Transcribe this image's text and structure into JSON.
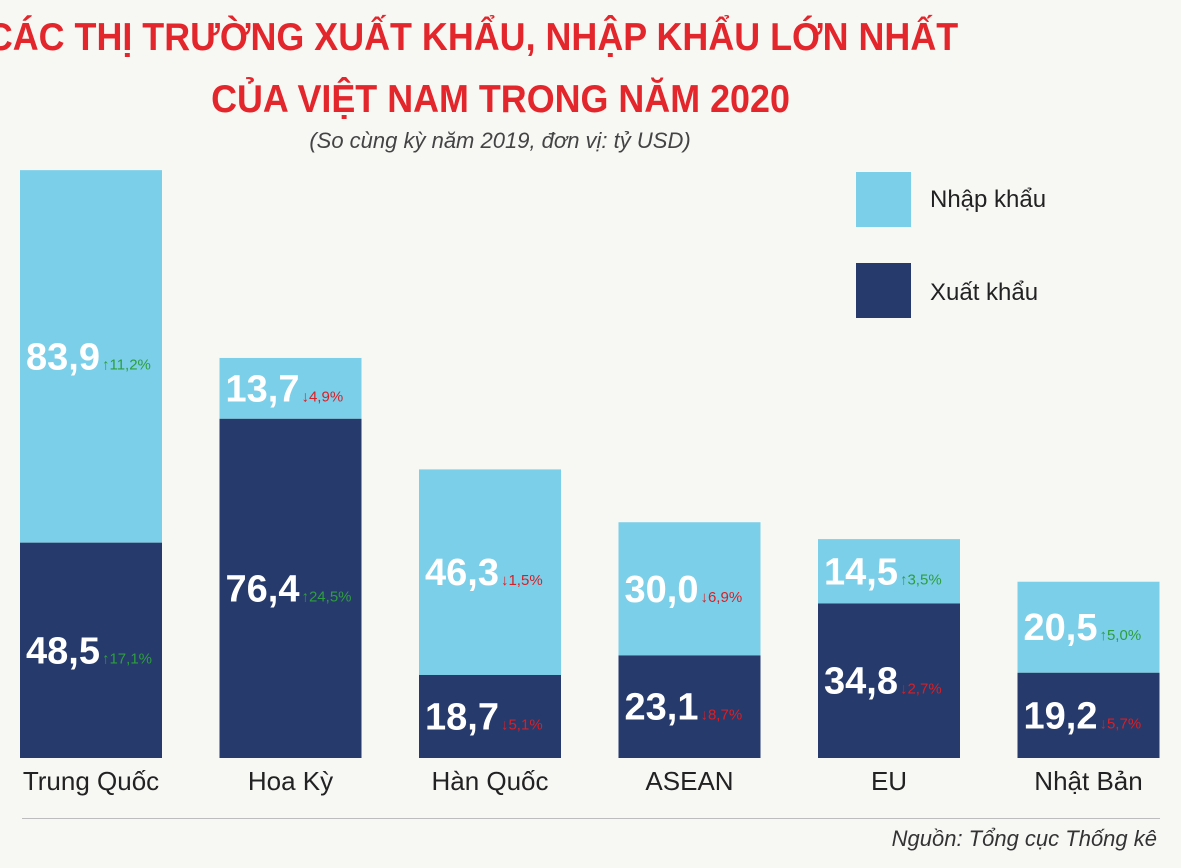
{
  "header": {
    "title_line1": "CÁC THỊ TRƯỜNG XUẤT KHẨU, NHẬP KHẨU LỚN NHẤT",
    "title_line2": "CỦA VIỆT NAM TRONG NĂM 2020",
    "subtitle": "(So cùng kỳ năm 2019, đơn vị: tỷ USD)"
  },
  "legend": {
    "import_label": "Nhập khẩu",
    "export_label": "Xuất khẩu"
  },
  "source": "Nguồn: Tổng cục Thống kê",
  "colors": {
    "import": "#7ccfe8",
    "export": "#263a6b",
    "up": "#2e9e3e",
    "down": "#d91f26"
  },
  "chart_data": {
    "type": "bar",
    "stacked": true,
    "title": "CÁC THỊ TRƯỜNG XUẤT KHẨU, NHẬP KHẨU LỚN NHẤT CỦA VIỆT NAM TRONG NĂM 2020",
    "unit": "tỷ USD",
    "categories": [
      "Trung Quốc",
      "Hoa Kỳ",
      "Hàn Quốc",
      "ASEAN",
      "EU",
      "Nhật Bản"
    ],
    "series": [
      {
        "name": "Xuất khẩu",
        "values": [
          48.5,
          76.4,
          18.7,
          23.1,
          34.8,
          19.2
        ],
        "labels": [
          "48,5",
          "76,4",
          "18,7",
          "23,1",
          "34,8",
          "19,2"
        ],
        "changes": [
          "17,1%",
          "24,5%",
          "5,1%",
          "8,7%",
          "2,7%",
          "5,7%"
        ],
        "directions": [
          "up",
          "up",
          "down",
          "down",
          "down",
          "down"
        ]
      },
      {
        "name": "Nhập khẩu",
        "values": [
          83.9,
          13.7,
          46.3,
          30.0,
          14.5,
          20.5
        ],
        "labels": [
          "83,9",
          "13,7",
          "46,3",
          "30,0",
          "14,5",
          "20,5"
        ],
        "changes": [
          "11,2%",
          "4,9%",
          "1,5%",
          "6,9%",
          "3,5%",
          "5,0%"
        ],
        "directions": [
          "up",
          "down",
          "down",
          "down",
          "up",
          "up"
        ]
      }
    ]
  }
}
